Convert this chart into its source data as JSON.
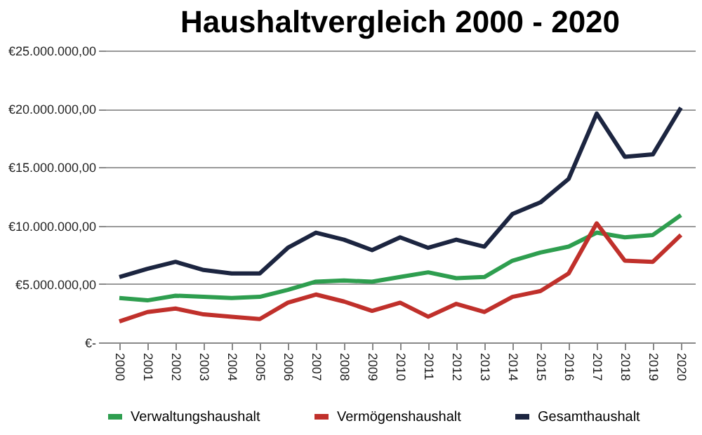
{
  "chart_data": {
    "type": "line",
    "title": "Haushaltvergleich 2000 - 2020",
    "categories": [
      "2000",
      "2001",
      "2002",
      "2003",
      "2004",
      "2005",
      "2006",
      "2007",
      "2008",
      "2009",
      "2010",
      "2011",
      "2012",
      "2013",
      "2014",
      "2015",
      "2016",
      "2017",
      "2018",
      "2019",
      "2020"
    ],
    "series": [
      {
        "name": "Verwaltungshaushalt",
        "color": "#2e9e4f",
        "values": [
          3800000,
          3600000,
          4000000,
          3900000,
          3800000,
          3900000,
          4500000,
          5200000,
          5300000,
          5200000,
          5600000,
          6000000,
          5500000,
          5600000,
          7000000,
          7700000,
          8200000,
          9400000,
          9000000,
          9200000,
          10900000
        ]
      },
      {
        "name": "Vermögenshaushalt",
        "color": "#c0302b",
        "values": [
          1800000,
          2600000,
          2900000,
          2400000,
          2200000,
          2000000,
          3400000,
          4100000,
          3500000,
          2700000,
          3400000,
          2200000,
          3300000,
          2600000,
          3900000,
          4400000,
          5900000,
          10200000,
          7000000,
          6900000,
          9200000
        ]
      },
      {
        "name": "Gesamthaushalt",
        "color": "#1c2540",
        "values": [
          5600000,
          6300000,
          6900000,
          6200000,
          5900000,
          5900000,
          8100000,
          9400000,
          8800000,
          7900000,
          9000000,
          8100000,
          8800000,
          8200000,
          11000000,
          12000000,
          14000000,
          19600000,
          15900000,
          16100000,
          20100000
        ]
      }
    ],
    "ylim": [
      0,
      25000000
    ],
    "yticks": [
      {
        "value": 0,
        "label": "€-"
      },
      {
        "value": 5000000,
        "label": "€5.000.000,00"
      },
      {
        "value": 10000000,
        "label": "€10.000.000,00"
      },
      {
        "value": 15000000,
        "label": "€15.000.000,00"
      },
      {
        "value": 20000000,
        "label": "€20.000.000,00"
      },
      {
        "value": 25000000,
        "label": "€25.000.000,00"
      }
    ],
    "grid": "y",
    "legend": "bottom",
    "marker": "none",
    "line_style": "solid"
  }
}
